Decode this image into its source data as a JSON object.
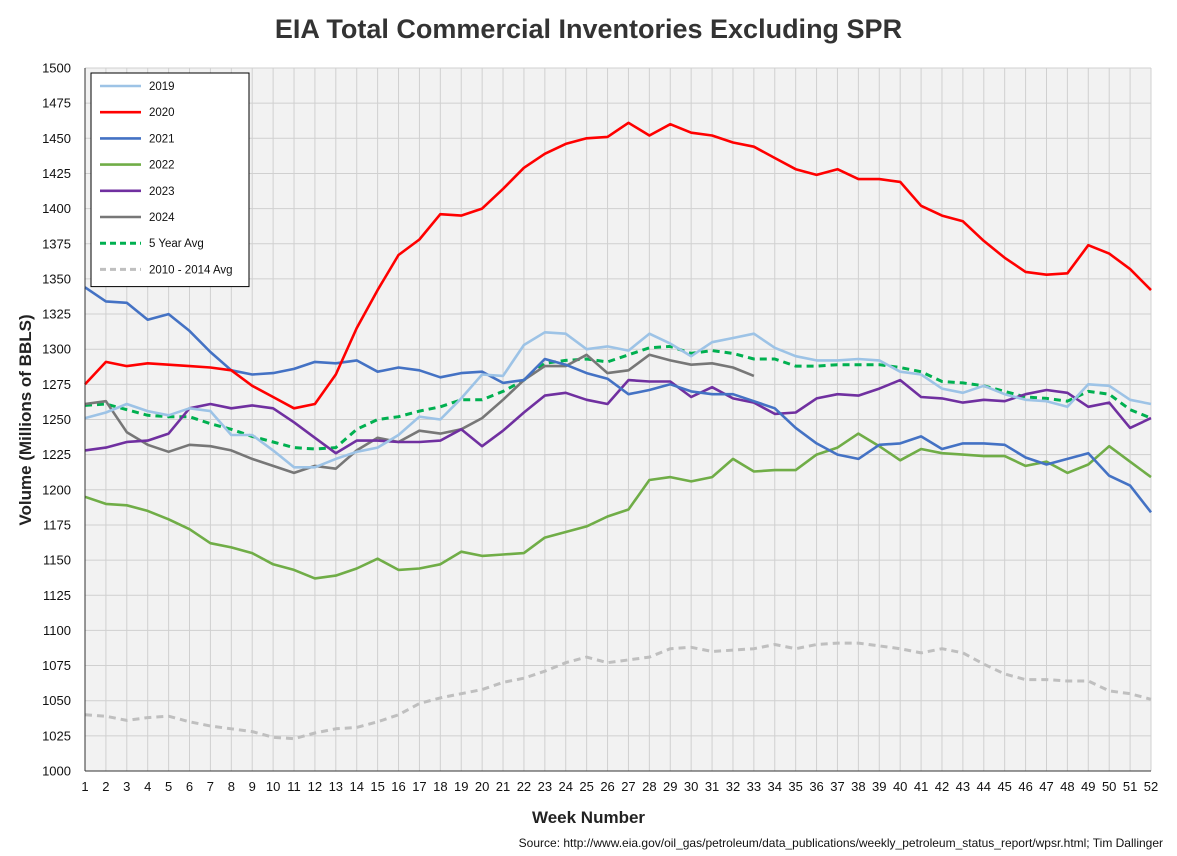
{
  "chart_data": {
    "type": "line",
    "title": "EIA Total Commercial Inventories Excluding SPR",
    "xlabel": "Week Number",
    "ylabel": "Volume (Millions of BBLS)",
    "source": "Source: http://www.eia.gov/oil_gas/petroleum/data_publications/weekly_petroleum_status_report/wpsr.html; Tim Dallinger",
    "xlim": [
      1,
      52
    ],
    "ylim": [
      1000,
      1500
    ],
    "y_ticks": [
      1000,
      1025,
      1050,
      1075,
      1100,
      1125,
      1150,
      1175,
      1200,
      1225,
      1250,
      1275,
      1300,
      1325,
      1350,
      1375,
      1400,
      1425,
      1450,
      1475,
      1500
    ],
    "x_ticks": [
      1,
      2,
      3,
      4,
      5,
      6,
      7,
      8,
      9,
      10,
      11,
      12,
      13,
      14,
      15,
      16,
      17,
      18,
      19,
      20,
      21,
      22,
      23,
      24,
      25,
      26,
      27,
      28,
      29,
      30,
      31,
      32,
      33,
      34,
      35,
      36,
      37,
      38,
      39,
      40,
      41,
      42,
      43,
      44,
      45,
      46,
      47,
      48,
      49,
      50,
      51,
      52
    ],
    "grid": true,
    "legend_position": "top-left",
    "series": [
      {
        "name": "2019",
        "color": "#9dc3e6",
        "dash": false,
        "values": [
          1251,
          1255,
          1261,
          1256,
          1253,
          1258,
          1256,
          1239,
          1239,
          1228,
          1216,
          1216,
          1222,
          1227,
          1230,
          1239,
          1252,
          1250,
          1265,
          1282,
          1281,
          1303,
          1312,
          1311,
          1300,
          1302,
          1299,
          1311,
          1304,
          1295,
          1305,
          1308,
          1311,
          1301,
          1295,
          1292,
          1292,
          1293,
          1292,
          1284,
          1282,
          1272,
          1269,
          1274,
          1268,
          1264,
          1263,
          1259,
          1275,
          1274,
          1264,
          1261
        ]
      },
      {
        "name": "2020",
        "color": "#ff0000",
        "dash": false,
        "values": [
          1275,
          1291,
          1288,
          1290,
          1289,
          1288,
          1287,
          1285,
          1274,
          1266,
          1258,
          1261,
          1282,
          1315,
          1342,
          1367,
          1378,
          1396,
          1395,
          1400,
          1414,
          1429,
          1439,
          1446,
          1450,
          1451,
          1461,
          1452,
          1460,
          1454,
          1452,
          1447,
          1444,
          1436,
          1428,
          1424,
          1428,
          1421,
          1421,
          1419,
          1402,
          1395,
          1391,
          1377,
          1365,
          1355,
          1353,
          1354,
          1374,
          1368,
          1357,
          1342
        ]
      },
      {
        "name": "2021",
        "color": "#4472c4",
        "dash": false,
        "values": [
          1344,
          1334,
          1333,
          1321,
          1325,
          1313,
          1298,
          1285,
          1282,
          1283,
          1286,
          1291,
          1290,
          1292,
          1284,
          1287,
          1285,
          1280,
          1283,
          1284,
          1276,
          1278,
          1293,
          1289,
          1283,
          1279,
          1268,
          1271,
          1275,
          1270,
          1268,
          1268,
          1263,
          1258,
          1244,
          1233,
          1225,
          1222,
          1232,
          1233,
          1238,
          1229,
          1233,
          1233,
          1232,
          1223,
          1218,
          1222,
          1226,
          1210,
          1203,
          1184
        ]
      },
      {
        "name": "2022",
        "color": "#70ad47",
        "dash": false,
        "values": [
          1195,
          1190,
          1189,
          1185,
          1179,
          1172,
          1162,
          1159,
          1155,
          1147,
          1143,
          1137,
          1139,
          1144,
          1151,
          1143,
          1144,
          1147,
          1156,
          1153,
          1154,
          1155,
          1166,
          1170,
          1174,
          1181,
          1186,
          1207,
          1209,
          1206,
          1209,
          1222,
          1213,
          1214,
          1214,
          1225,
          1230,
          1240,
          1231,
          1221,
          1229,
          1226,
          1225,
          1224,
          1224,
          1217,
          1220,
          1212,
          1218,
          1231,
          1220,
          1209
        ]
      },
      {
        "name": "2023",
        "color": "#7030a0",
        "dash": false,
        "values": [
          1228,
          1230,
          1234,
          1235,
          1240,
          1258,
          1261,
          1258,
          1260,
          1258,
          1248,
          1237,
          1226,
          1235,
          1235,
          1234,
          1234,
          1235,
          1243,
          1231,
          1242,
          1255,
          1267,
          1269,
          1264,
          1261,
          1278,
          1277,
          1277,
          1266,
          1273,
          1265,
          1262,
          1254,
          1255,
          1265,
          1268,
          1267,
          1272,
          1278,
          1266,
          1265,
          1262,
          1264,
          1263,
          1268,
          1271,
          1269,
          1259,
          1262,
          1244,
          1251
        ]
      },
      {
        "name": "2024",
        "color": "#777777",
        "dash": false,
        "values": [
          1261,
          1263,
          1241,
          1232,
          1227,
          1232,
          1231,
          1228,
          1222,
          1217,
          1212,
          1217,
          1215,
          1228,
          1237,
          1234,
          1242,
          1240,
          1243,
          1251,
          1264,
          1278,
          1288,
          1288,
          1296,
          1283,
          1285,
          1296,
          1292,
          1289,
          1290,
          1287,
          1281
        ]
      },
      {
        "name": "5 Year Avg",
        "color": "#00b050",
        "dash": true,
        "values": [
          1260,
          1261,
          1257,
          1253,
          1252,
          1252,
          1247,
          1243,
          1238,
          1234,
          1230,
          1229,
          1230,
          1243,
          1250,
          1252,
          1256,
          1259,
          1264,
          1264,
          1270,
          1278,
          1290,
          1292,
          1293,
          1291,
          1296,
          1301,
          1302,
          1297,
          1299,
          1297,
          1293,
          1293,
          1288,
          1288,
          1289,
          1289,
          1289,
          1287,
          1284,
          1277,
          1276,
          1274,
          1270,
          1266,
          1265,
          1263,
          1270,
          1268,
          1257,
          1251
        ]
      },
      {
        "name": "2010 - 2014 Avg",
        "color": "#bfbfbf",
        "dash": true,
        "values": [
          1040,
          1039,
          1036,
          1038,
          1039,
          1035,
          1032,
          1030,
          1028,
          1024,
          1023,
          1027,
          1030,
          1031,
          1035,
          1040,
          1048,
          1052,
          1055,
          1058,
          1063,
          1066,
          1071,
          1077,
          1081,
          1077,
          1079,
          1081,
          1087,
          1088,
          1085,
          1086,
          1087,
          1090,
          1087,
          1090,
          1091,
          1091,
          1089,
          1087,
          1084,
          1087,
          1084,
          1076,
          1069,
          1065,
          1065,
          1064,
          1064,
          1057,
          1055,
          1051
        ]
      }
    ]
  }
}
